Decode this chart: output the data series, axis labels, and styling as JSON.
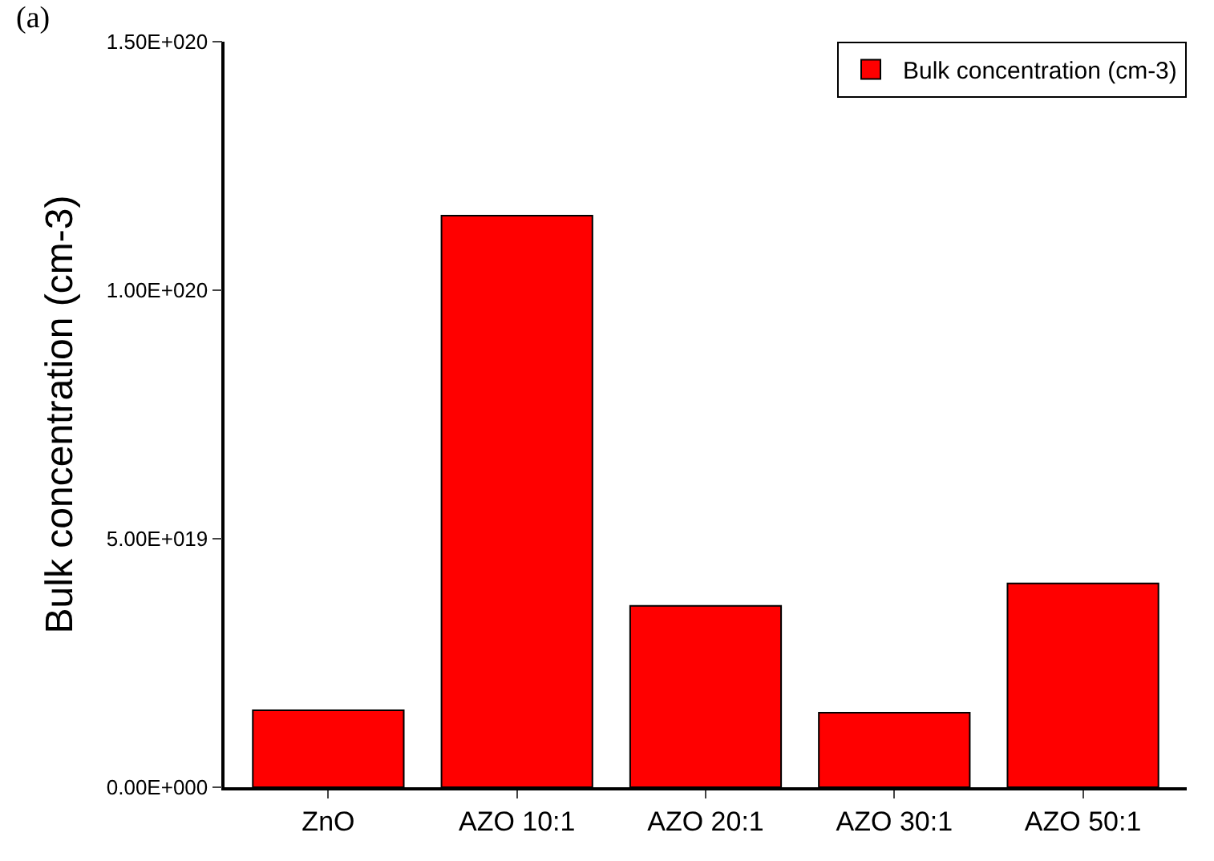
{
  "chart_data": {
    "type": "bar",
    "ylabel": "Bulk concentration (cm-3)",
    "categories": [
      "ZnO",
      "AZO 10:1",
      "AZO 20:1",
      "AZO 30:1",
      "AZO 50:1"
    ],
    "series": [
      {
        "name": "Bulk concentration (cm-3)",
        "color": "#ff0000",
        "values": [
          1.55e+19,
          1.15e+20,
          3.65e+19,
          1.5e+19,
          4.1e+19
        ]
      }
    ],
    "ylim": [
      0,
      1.5e+20
    ],
    "yticks": [
      {
        "value": 0,
        "label": "0.00E+000"
      },
      {
        "value": 5e+19,
        "label": "5.00E+019"
      },
      {
        "value": 1e+20,
        "label": "1.00E+020"
      },
      {
        "value": 1.5e+20,
        "label": "1.50E+020"
      }
    ],
    "grid": false,
    "legend": "top right",
    "annotations": [
      "(a)"
    ]
  }
}
